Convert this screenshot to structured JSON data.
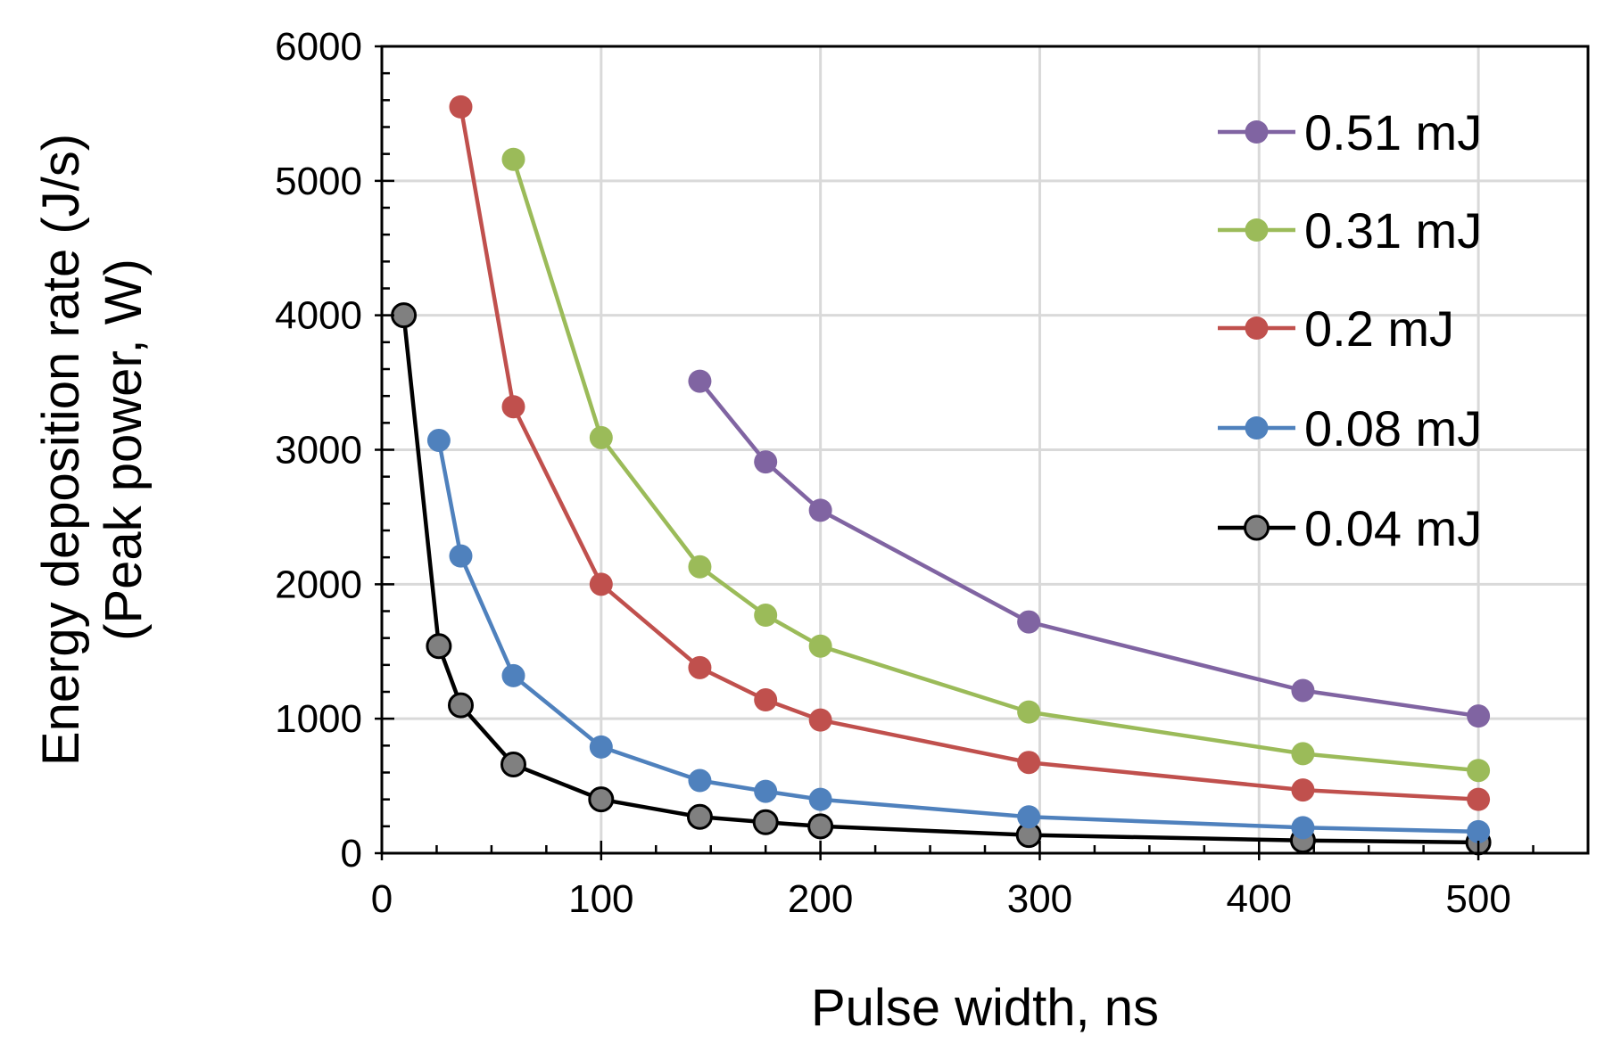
{
  "chart_data": {
    "type": "line",
    "title": "",
    "xlabel": "Pulse width, ns",
    "ylabel_line1": "Energy deposition rate (J/s)",
    "ylabel_line2": "(Peak power, W)",
    "xlim": [
      0,
      550
    ],
    "ylim": [
      0,
      6000
    ],
    "x_ticks": [
      0,
      100,
      200,
      300,
      400,
      500
    ],
    "y_ticks": [
      0,
      1000,
      2000,
      3000,
      4000,
      5000,
      6000
    ],
    "x_tick_labels": [
      "0",
      "100",
      "200",
      "300",
      "400",
      "500"
    ],
    "y_tick_labels": [
      "0",
      "1000",
      "2000",
      "3000",
      "4000",
      "5000",
      "6000"
    ],
    "grid": true,
    "legend_position": "top-right",
    "series": [
      {
        "name": "0.51 mJ",
        "color": "#8064a2",
        "x": [
          145,
          175,
          200,
          295,
          420,
          500
        ],
        "y": [
          3510,
          2910,
          2550,
          1720,
          1210,
          1020
        ]
      },
      {
        "name": "0.31 mJ",
        "color": "#9bbb59",
        "x": [
          60,
          100,
          145,
          175,
          200,
          295,
          420,
          500
        ],
        "y": [
          5160,
          3090,
          2130,
          1770,
          1540,
          1050,
          740,
          615
        ]
      },
      {
        "name": "0.2 mJ",
        "color": "#c0504d",
        "x": [
          36,
          60,
          100,
          145,
          175,
          200,
          295,
          420,
          500
        ],
        "y": [
          5550,
          3320,
          2000,
          1380,
          1140,
          990,
          675,
          470,
          400
        ]
      },
      {
        "name": "0.08 mJ",
        "color": "#4f81bd",
        "x": [
          26,
          36,
          60,
          100,
          145,
          175,
          200,
          295,
          420,
          500
        ],
        "y": [
          3070,
          2210,
          1320,
          790,
          540,
          460,
          400,
          270,
          190,
          160
        ]
      },
      {
        "name": "0.04 mJ",
        "color": "#000000",
        "marker_color": "#808080",
        "x": [
          10,
          26,
          36,
          60,
          100,
          145,
          175,
          200,
          295,
          420,
          500
        ],
        "y": [
          4000,
          1540,
          1100,
          660,
          400,
          270,
          230,
          200,
          135,
          95,
          80
        ]
      }
    ]
  }
}
